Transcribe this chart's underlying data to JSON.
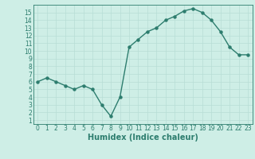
{
  "title": "",
  "xlabel": "Humidex (Indice chaleur)",
  "ylabel": "",
  "x": [
    0,
    1,
    2,
    3,
    4,
    5,
    6,
    7,
    8,
    9,
    10,
    11,
    12,
    13,
    14,
    15,
    16,
    17,
    18,
    19,
    20,
    21,
    22,
    23
  ],
  "y": [
    6,
    6.5,
    6,
    5.5,
    5,
    5.5,
    5,
    3,
    1.5,
    4,
    10.5,
    11.5,
    12.5,
    13,
    14,
    14.5,
    15.2,
    15.5,
    15,
    14,
    12.5,
    10.5,
    9.5,
    9.5
  ],
  "line_color": "#2d7d6e",
  "marker_color": "#2d7d6e",
  "bg_color": "#ceeee6",
  "grid_color": "#b8ddd5",
  "xlim": [
    -0.5,
    23.5
  ],
  "ylim": [
    0.5,
    16
  ],
  "yticks": [
    1,
    2,
    3,
    4,
    5,
    6,
    7,
    8,
    9,
    10,
    11,
    12,
    13,
    14,
    15
  ],
  "xticks": [
    0,
    1,
    2,
    3,
    4,
    5,
    6,
    7,
    8,
    9,
    10,
    11,
    12,
    13,
    14,
    15,
    16,
    17,
    18,
    19,
    20,
    21,
    22,
    23
  ],
  "tick_label_fontsize": 5.5,
  "xlabel_fontsize": 7,
  "marker_size": 2.2,
  "line_width": 1.0
}
